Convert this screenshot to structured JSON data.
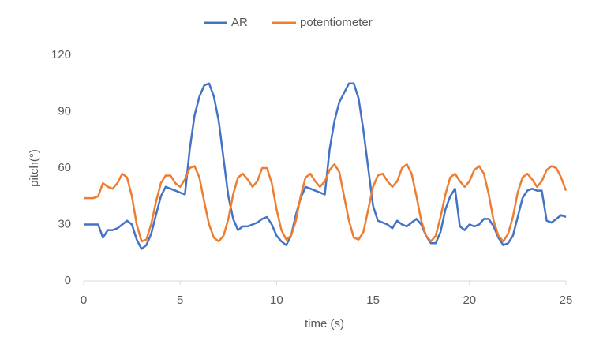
{
  "chart_data": {
    "type": "line",
    "x_label": "time (s)",
    "y_label": "pitch(°)",
    "x": [
      0,
      0.25,
      0.5,
      0.75,
      1,
      1.25,
      1.5,
      1.75,
      2,
      2.25,
      2.5,
      2.75,
      3,
      3.25,
      3.5,
      3.75,
      4,
      4.25,
      4.5,
      4.75,
      5,
      5.25,
      5.5,
      5.75,
      6,
      6.25,
      6.5,
      6.75,
      7,
      7.25,
      7.5,
      7.75,
      8,
      8.25,
      8.5,
      8.75,
      9,
      9.25,
      9.5,
      9.75,
      10,
      10.25,
      10.5,
      10.75,
      11,
      11.25,
      11.5,
      11.75,
      12,
      12.25,
      12.5,
      12.75,
      13,
      13.25,
      13.5,
      13.75,
      14,
      14.25,
      14.5,
      14.75,
      15,
      15.25,
      15.5,
      15.75,
      16,
      16.25,
      16.5,
      16.75,
      17,
      17.25,
      17.5,
      17.75,
      18,
      18.25,
      18.5,
      18.75,
      19,
      19.25,
      19.5,
      19.75,
      20,
      20.25,
      20.5,
      20.75,
      21,
      21.25,
      21.5,
      21.75,
      22,
      22.25,
      22.5,
      22.75,
      23,
      23.25,
      23.5,
      23.75,
      24,
      24.25,
      24.5,
      24.75,
      25
    ],
    "series": [
      {
        "name": "AR",
        "color": "#4472c4",
        "values": [
          30,
          30,
          30,
          30,
          23,
          27,
          27,
          28,
          30,
          32,
          30,
          22,
          17,
          19,
          25,
          35,
          45,
          50,
          49,
          48,
          47,
          46,
          70,
          88,
          98,
          104,
          105,
          98,
          85,
          65,
          45,
          33,
          27,
          29,
          29,
          30,
          31,
          33,
          34,
          30,
          24,
          21,
          19,
          24,
          35,
          44,
          50,
          49,
          48,
          47,
          46,
          70,
          85,
          95,
          100,
          105,
          105,
          97,
          80,
          60,
          40,
          32,
          31,
          30,
          28,
          32,
          30,
          29,
          31,
          33,
          30,
          24,
          20,
          20,
          26,
          38,
          45,
          49,
          29,
          27,
          30,
          29,
          30,
          33,
          33,
          29,
          23,
          19,
          20,
          24,
          34,
          44,
          48,
          49,
          48,
          48,
          32,
          31,
          33,
          35,
          34
        ]
      },
      {
        "name": "potentiometer",
        "color": "#ed7d31",
        "values": [
          44,
          44,
          44,
          45,
          52,
          50,
          49,
          52,
          57,
          55,
          45,
          30,
          21,
          22,
          30,
          42,
          52,
          56,
          56,
          52,
          50,
          54,
          60,
          61,
          55,
          42,
          30,
          23,
          21,
          24,
          33,
          46,
          55,
          57,
          54,
          50,
          53,
          60,
          60,
          52,
          38,
          27,
          22,
          24,
          32,
          45,
          55,
          57,
          53,
          50,
          53,
          59,
          62,
          58,
          45,
          32,
          23,
          22,
          26,
          38,
          50,
          56,
          57,
          53,
          50,
          53,
          60,
          62,
          57,
          45,
          32,
          24,
          21,
          24,
          34,
          46,
          55,
          57,
          53,
          50,
          53,
          59,
          61,
          57,
          46,
          32,
          24,
          21,
          25,
          34,
          47,
          55,
          57,
          54,
          50,
          53,
          59,
          61,
          60,
          55,
          48
        ]
      }
    ],
    "xlim": [
      0,
      25
    ],
    "xticks": [
      0,
      5,
      10,
      15,
      20,
      25
    ],
    "ylim": [
      0,
      120
    ],
    "yticks": [
      0,
      30,
      60,
      90,
      120
    ],
    "legend": "top"
  }
}
